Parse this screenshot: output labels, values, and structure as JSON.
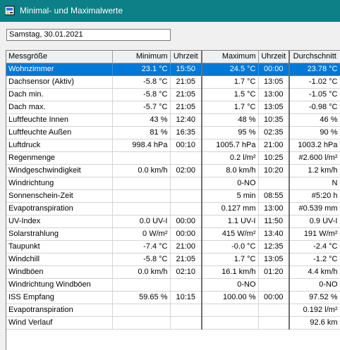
{
  "window": {
    "title": "Minimal- und Maximalwerte"
  },
  "date_field": {
    "value": "Samstag, 30.01.2021"
  },
  "table": {
    "headers": [
      "Messgröße",
      "Minimum",
      "Uhrzeit",
      "Maximum",
      "Uhrzeit",
      "Durchschnitt"
    ],
    "selected_row": 0,
    "rows": [
      [
        "Wohnzimmer",
        "23.1 °C",
        "15:50",
        "24.5 °C",
        "00:00",
        "23.78 °C"
      ],
      [
        "Dachsensor (Aktiv)",
        "-5.8 °C",
        "21:05",
        "1.7 °C",
        "13:05",
        "-1.02 °C"
      ],
      [
        "Dach min.",
        "-5.8 °C",
        "21:05",
        "1.5 °C",
        "13:00",
        "-1.05 °C"
      ],
      [
        "Dach max.",
        "-5.7 °C",
        "21:05",
        "1.7 °C",
        "13:05",
        "-0.98 °C"
      ],
      [
        "Luftfeuchte Innen",
        "43 %",
        "12:40",
        "48 %",
        "10:35",
        "46 %"
      ],
      [
        "Luftfeuchte Außen",
        "81 %",
        "16:35",
        "95 %",
        "02:35",
        "90 %"
      ],
      [
        "Luftdruck",
        "998.4 hPa",
        "00:10",
        "1005.7 hPa",
        "21:00",
        "1003.2 hPa"
      ],
      [
        "Regenmenge",
        "",
        "",
        "0.2 l/m²",
        "10:25",
        "#2.600 l/m²"
      ],
      [
        "Windgeschwindigkeit",
        "0.0 km/h",
        "02:00",
        "8.0 km/h",
        "10:20",
        "1.2 km/h"
      ],
      [
        "Windrichtung",
        "",
        "",
        "0-NO",
        "",
        "N"
      ],
      [
        "Sonnenschein-Zeit",
        "",
        "",
        "5 min",
        "08:55",
        "#5:20 h"
      ],
      [
        "Evapotranspiration",
        "",
        "",
        "0.127 mm",
        "13:00",
        "#0.539 mm"
      ],
      [
        "UV-Index",
        "0.0 UV-I",
        "00:00",
        "1.1 UV-I",
        "11:50",
        "0.9 UV-I"
      ],
      [
        "Solarstrahlung",
        "0 W/m²",
        "00:00",
        "415 W/m²",
        "13:40",
        "191 W/m²"
      ],
      [
        "Taupunkt",
        "-7.4 °C",
        "21:00",
        "-0.0 °C",
        "12:35",
        "-2.4 °C"
      ],
      [
        "Windchill",
        "-5.8 °C",
        "21:05",
        "1.7 °C",
        "13:05",
        "-1.2 °C"
      ],
      [
        "Windböen",
        "0.0 km/h",
        "02:10",
        "16.1 km/h",
        "01:20",
        "4.4 km/h"
      ],
      [
        "Windrichtung Windböen",
        "",
        "",
        "0-NO",
        "",
        "0-NO"
      ],
      [
        "ISS Empfang",
        "59.65 %",
        "10:15",
        "100.00 %",
        "00:00",
        "97.52 %"
      ],
      [
        "Evapotranspiration",
        "",
        "",
        "",
        "",
        "0.192 l/m²"
      ],
      [
        "Wind Verlauf",
        "",
        "",
        "",
        "",
        "92.6 km"
      ]
    ]
  }
}
